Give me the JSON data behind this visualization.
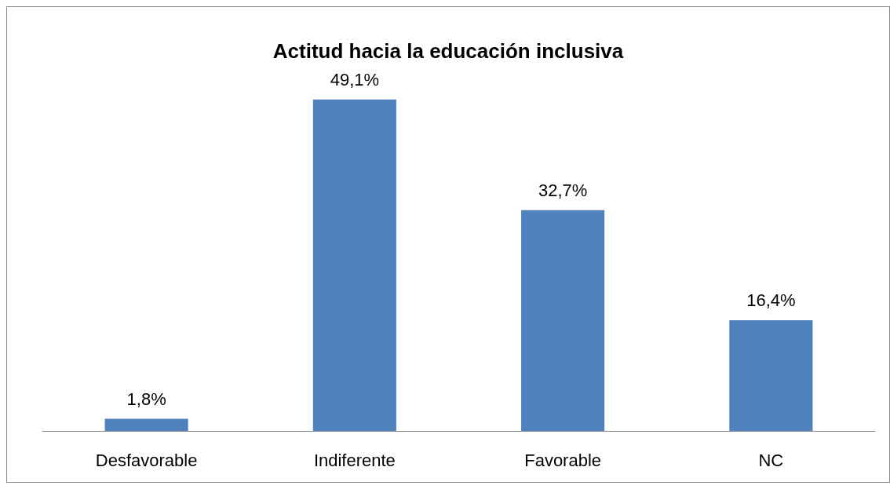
{
  "chart_data": {
    "type": "bar",
    "title": "Actitud hacia la educación inclusiva",
    "categories": [
      "Desfavorable",
      "Indiferente",
      "Favorable",
      "NC"
    ],
    "values": [
      1.8,
      49.1,
      32.7,
      16.4
    ],
    "value_labels": [
      "1,8%",
      "49,1%",
      "32,7%",
      "16,4%"
    ],
    "color": "#4f81bd",
    "grid": false
  }
}
